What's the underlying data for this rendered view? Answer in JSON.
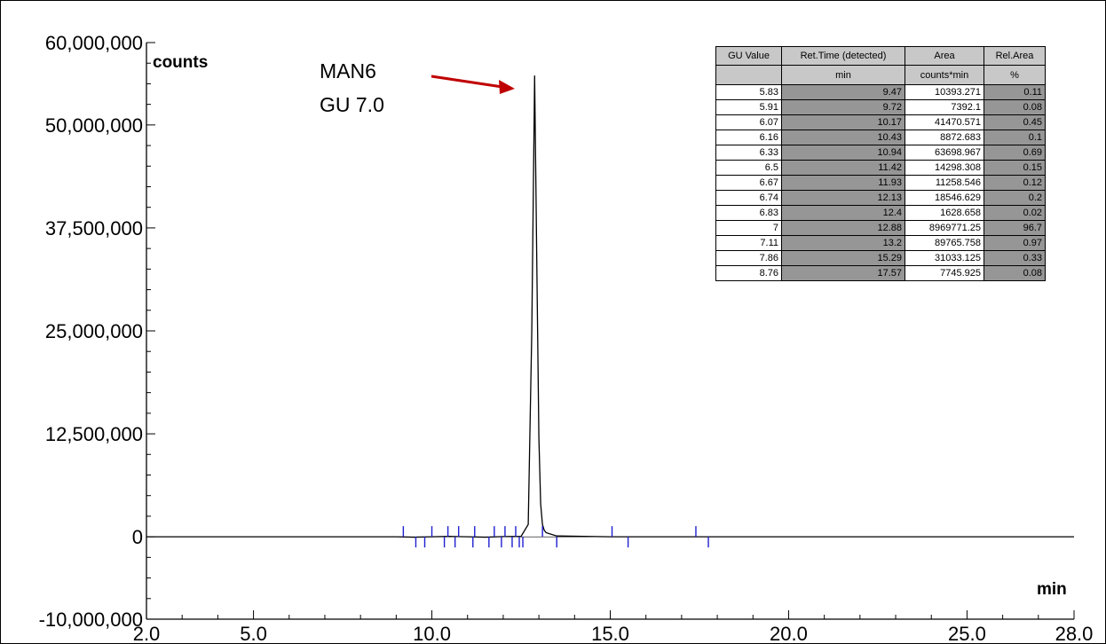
{
  "chart_data": {
    "type": "line",
    "y_unit": "counts",
    "x_unit": "min",
    "xlim": [
      2.0,
      28.0
    ],
    "ylim": [
      -10000000,
      60000000
    ],
    "x_tick_labels": [
      "2.0",
      "5.0",
      "10.0",
      "15.0",
      "20.0",
      "25.0",
      "28.0"
    ],
    "x_ticks": [
      2.0,
      5.0,
      10.0,
      15.0,
      20.0,
      25.0,
      28.0
    ],
    "y_tick_labels": [
      "60,000,000",
      "50,000,000",
      "37,500,000",
      "25,000,000",
      "12,500,000",
      "0",
      "-10,000,000"
    ],
    "y_ticks": [
      60000000,
      50000000,
      37500000,
      25000000,
      12500000,
      0,
      -10000000
    ],
    "annotation": {
      "line1": "MAN6",
      "line2": "GU 7.0"
    },
    "series": [
      {
        "x": [
          2.0,
          9.0,
          9.5,
          10.0,
          10.5,
          11.0,
          11.5,
          12.0,
          12.5,
          12.7,
          12.8,
          12.88,
          12.95,
          13.0,
          13.05,
          13.1,
          13.15,
          13.2,
          13.5,
          15.0,
          15.3,
          17.5,
          20.0,
          25.0,
          28.0
        ],
        "y": [
          0,
          0,
          -50000,
          0,
          50000,
          0,
          -50000,
          30000,
          50000,
          1500000,
          25000000,
          56000000,
          30000000,
          12000000,
          4000000,
          1500000,
          800000,
          500000,
          100000,
          0,
          0,
          0,
          0,
          0,
          0
        ]
      }
    ],
    "peak_markers": [
      {
        "x": 9.2,
        "dir": "up"
      },
      {
        "x": 9.55,
        "dir": "down"
      },
      {
        "x": 9.8,
        "dir": "down"
      },
      {
        "x": 10.0,
        "dir": "up"
      },
      {
        "x": 10.35,
        "dir": "down"
      },
      {
        "x": 10.45,
        "dir": "up"
      },
      {
        "x": 10.65,
        "dir": "down"
      },
      {
        "x": 10.75,
        "dir": "up"
      },
      {
        "x": 11.15,
        "dir": "down"
      },
      {
        "x": 11.2,
        "dir": "up"
      },
      {
        "x": 11.6,
        "dir": "down"
      },
      {
        "x": 11.75,
        "dir": "up"
      },
      {
        "x": 11.95,
        "dir": "down"
      },
      {
        "x": 12.05,
        "dir": "up"
      },
      {
        "x": 12.25,
        "dir": "down"
      },
      {
        "x": 12.35,
        "dir": "up"
      },
      {
        "x": 12.45,
        "dir": "down"
      },
      {
        "x": 12.55,
        "dir": "down"
      },
      {
        "x": 13.1,
        "dir": "up"
      },
      {
        "x": 13.5,
        "dir": "down"
      },
      {
        "x": 15.05,
        "dir": "up"
      },
      {
        "x": 15.5,
        "dir": "down"
      },
      {
        "x": 17.4,
        "dir": "up"
      },
      {
        "x": 17.75,
        "dir": "down"
      }
    ],
    "table": {
      "headers": [
        "GU Value",
        "Ret.Time (detected)",
        "Area",
        "Rel.Area"
      ],
      "units": [
        "",
        "min",
        "counts*min",
        "%"
      ],
      "rows": [
        [
          "5.83",
          "9.47",
          "10393.271",
          "0.11"
        ],
        [
          "5.91",
          "9.72",
          "7392.1",
          "0.08"
        ],
        [
          "6.07",
          "10.17",
          "41470.571",
          "0.45"
        ],
        [
          "6.16",
          "10.43",
          "8872.683",
          "0.1"
        ],
        [
          "6.33",
          "10.94",
          "63698.967",
          "0.69"
        ],
        [
          "6.5",
          "11.42",
          "14298.308",
          "0.15"
        ],
        [
          "6.67",
          "11.93",
          "11258.546",
          "0.12"
        ],
        [
          "6.74",
          "12.13",
          "18546.629",
          "0.2"
        ],
        [
          "6.83",
          "12.4",
          "1628.658",
          "0.02"
        ],
        [
          "7",
          "12.88",
          "8969771.25",
          "96.7"
        ],
        [
          "7.11",
          "13.2",
          "89765.758",
          "0.97"
        ],
        [
          "7.86",
          "15.29",
          "31033.125",
          "0.33"
        ],
        [
          "8.76",
          "17.57",
          "7745.925",
          "0.08"
        ]
      ]
    }
  },
  "colors": {
    "trace": "#000000",
    "markers": "#1f1fd0",
    "arrow": "#c00000"
  }
}
